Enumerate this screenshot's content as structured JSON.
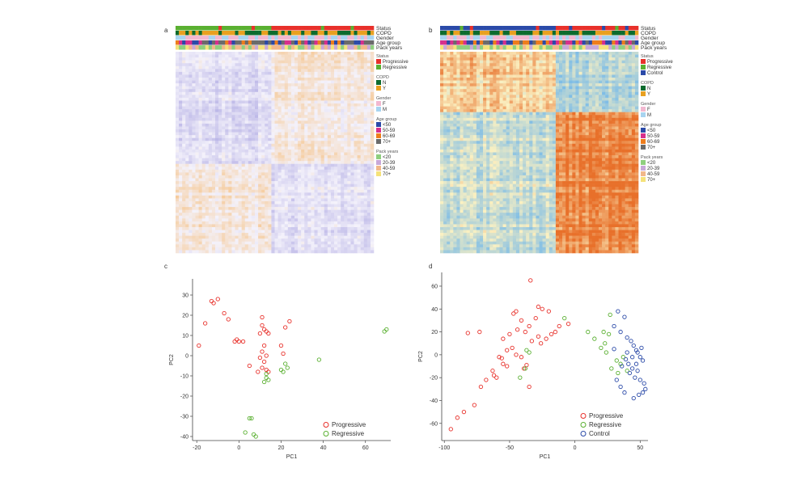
{
  "figure": {
    "panel_letters": [
      "a",
      "b",
      "c",
      "d"
    ],
    "colors": {
      "progressive": "#e8312b",
      "regressive": "#5ab031",
      "control": "#2b4aa8",
      "copd_n": "#0d6b2e",
      "copd_y": "#e8a020",
      "gender_f": "#f2b8d0",
      "gender_m": "#a8d4f0",
      "age_lt50": "#2b4aa8",
      "age_50_59": "#d72f8c",
      "age_60_69": "#ee7d1c",
      "age_70plus": "#6b6b6b",
      "pack_lt20": "#8fcf7e",
      "pack_20_39": "#c8a8d8",
      "pack_40_59": "#f2b88a",
      "pack_70plus": "#f5e27a"
    }
  },
  "chart_data": [
    {
      "id": "a",
      "type": "heatmap",
      "palette": [
        "#b9b4e6",
        "#f4f2fb",
        "#f6c58c"
      ],
      "track_labels": [
        "Status",
        "COPD",
        "Gender",
        "Age group",
        "Pack years"
      ],
      "legend": [
        {
          "title": "Status",
          "items": [
            "Progressive",
            "Regressive"
          ]
        },
        {
          "title": "COPD",
          "items": [
            "N",
            "Y"
          ]
        },
        {
          "title": "Gender",
          "items": [
            "F",
            "M"
          ]
        },
        {
          "title": "Age group",
          "items": [
            "<50",
            "50-59",
            "60-69",
            "70+"
          ]
        },
        {
          "title": "Pack years",
          "items": [
            "<20",
            "20-39",
            "40-59",
            "70+"
          ]
        }
      ]
    },
    {
      "id": "b",
      "type": "heatmap",
      "palette": [
        "#7fbde6",
        "#fbf1c2",
        "#e8702a"
      ],
      "track_labels": [
        "Status",
        "COPD",
        "Gender",
        "Age group",
        "Pack years"
      ],
      "legend": [
        {
          "title": "Status",
          "items": [
            "Progressive",
            "Regressive",
            "Control"
          ]
        },
        {
          "title": "COPD",
          "items": [
            "N",
            "Y"
          ]
        },
        {
          "title": "Gender",
          "items": [
            "F",
            "M"
          ]
        },
        {
          "title": "Age group",
          "items": [
            "<50",
            "50-59",
            "60-69",
            "70+"
          ]
        },
        {
          "title": "Pack years",
          "items": [
            "<20",
            "20-39",
            "40-59",
            "70+"
          ]
        }
      ]
    },
    {
      "id": "c",
      "type": "scatter",
      "xlabel": "PC1",
      "ylabel": "PC2",
      "xlim": [
        -22,
        72
      ],
      "ylim": [
        -42,
        38
      ],
      "xticks": [
        -20,
        0,
        20,
        40,
        60
      ],
      "yticks": [
        -40,
        -30,
        -20,
        -10,
        0,
        10,
        20,
        30
      ],
      "legend_position": "bottom-right",
      "series": [
        {
          "name": "Progressive",
          "color": "#e8312b",
          "points": [
            [
              -13,
              27
            ],
            [
              -10,
              28
            ],
            [
              -12,
              26
            ],
            [
              -16,
              16
            ],
            [
              -7,
              21
            ],
            [
              -5,
              18
            ],
            [
              -19,
              5
            ],
            [
              -1,
              8
            ],
            [
              0,
              7
            ],
            [
              2,
              7
            ],
            [
              -2,
              7
            ],
            [
              11,
              19
            ],
            [
              11,
              15
            ],
            [
              12,
              13
            ],
            [
              13,
              12
            ],
            [
              14,
              11
            ],
            [
              10,
              11
            ],
            [
              12,
              5
            ],
            [
              11,
              2
            ],
            [
              13,
              0
            ],
            [
              10,
              -1
            ],
            [
              12,
              -3
            ],
            [
              11,
              -6
            ],
            [
              9,
              -8
            ],
            [
              5,
              -5
            ],
            [
              13,
              -7
            ],
            [
              22,
              14
            ],
            [
              24,
              17
            ],
            [
              20,
              5
            ],
            [
              21,
              1
            ],
            [
              14,
              -8
            ]
          ]
        },
        {
          "name": "Regressive",
          "color": "#5ab031",
          "points": [
            [
              13,
              -9
            ],
            [
              13,
              -11
            ],
            [
              12,
              -13
            ],
            [
              14,
              -12
            ],
            [
              22,
              -4
            ],
            [
              23,
              -6
            ],
            [
              21,
              -8
            ],
            [
              20,
              -7
            ],
            [
              38,
              -2
            ],
            [
              70,
              13
            ],
            [
              69,
              12
            ],
            [
              5,
              -31
            ],
            [
              6,
              -31
            ],
            [
              3,
              -38
            ],
            [
              7,
              -39
            ],
            [
              8,
              -40
            ]
          ]
        }
      ]
    },
    {
      "id": "d",
      "type": "scatter",
      "xlabel": "PC1",
      "ylabel": "PC2",
      "xlim": [
        -102,
        56
      ],
      "ylim": [
        -75,
        72
      ],
      "xticks": [
        -100,
        -50,
        0,
        50
      ],
      "yticks": [
        -60,
        -40,
        -20,
        0,
        20,
        40,
        60
      ],
      "legend_position": "bottom-right",
      "series": [
        {
          "name": "Progressive",
          "color": "#e8312b",
          "points": [
            [
              -34,
              65
            ],
            [
              -45,
              38
            ],
            [
              -47,
              36
            ],
            [
              -28,
              42
            ],
            [
              -25,
              40
            ],
            [
              -20,
              38
            ],
            [
              -30,
              32
            ],
            [
              -41,
              30
            ],
            [
              -35,
              25
            ],
            [
              -38,
              20
            ],
            [
              -44,
              22
            ],
            [
              -50,
              18
            ],
            [
              -55,
              14
            ],
            [
              -73,
              20
            ],
            [
              -82,
              19
            ],
            [
              -48,
              6
            ],
            [
              -52,
              4
            ],
            [
              -41,
              -2
            ],
            [
              -45,
              0
            ],
            [
              -56,
              -3
            ],
            [
              -58,
              -2
            ],
            [
              -55,
              -8
            ],
            [
              -52,
              -10
            ],
            [
              -63,
              -14
            ],
            [
              -62,
              -18
            ],
            [
              -68,
              -22
            ],
            [
              -72,
              -28
            ],
            [
              -60,
              -20
            ],
            [
              -35,
              -28
            ],
            [
              -37,
              -9
            ],
            [
              -39,
              -12
            ],
            [
              -77,
              -44
            ],
            [
              -85,
              -50
            ],
            [
              -90,
              -55
            ],
            [
              -95,
              -65
            ],
            [
              -12,
              25
            ],
            [
              -5,
              27
            ],
            [
              -18,
              18
            ],
            [
              -22,
              14
            ],
            [
              -33,
              12
            ],
            [
              -28,
              16
            ],
            [
              -15,
              20
            ],
            [
              -26,
              10
            ]
          ]
        },
        {
          "name": "Regressive",
          "color": "#5ab031",
          "points": [
            [
              -8,
              32
            ],
            [
              -35,
              2
            ],
            [
              -38,
              -12
            ],
            [
              -42,
              -20
            ],
            [
              -37,
              4
            ],
            [
              10,
              20
            ],
            [
              15,
              14
            ],
            [
              22,
              20
            ],
            [
              27,
              35
            ],
            [
              26,
              18
            ],
            [
              20,
              6
            ],
            [
              23,
              10
            ],
            [
              24,
              2
            ],
            [
              32,
              -5
            ],
            [
              35,
              -8
            ],
            [
              28,
              -12
            ],
            [
              33,
              -16
            ],
            [
              37,
              -2
            ],
            [
              40,
              -14
            ]
          ]
        },
        {
          "name": "Control",
          "color": "#2b4aa8",
          "points": [
            [
              33,
              38
            ],
            [
              38,
              33
            ],
            [
              30,
              25
            ],
            [
              35,
              20
            ],
            [
              40,
              15
            ],
            [
              43,
              12
            ],
            [
              45,
              8
            ],
            [
              48,
              2
            ],
            [
              50,
              -2
            ],
            [
              52,
              -5
            ],
            [
              47,
              -8
            ],
            [
              44,
              -12
            ],
            [
              41,
              -8
            ],
            [
              39,
              -4
            ],
            [
              42,
              -16
            ],
            [
              46,
              -20
            ],
            [
              50,
              -22
            ],
            [
              53,
              -25
            ],
            [
              54,
              -30
            ],
            [
              52,
              -33
            ],
            [
              49,
              -35
            ],
            [
              45,
              -38
            ],
            [
              38,
              -33
            ],
            [
              35,
              -28
            ],
            [
              32,
              -22
            ],
            [
              36,
              -10
            ],
            [
              40,
              2
            ],
            [
              44,
              -2
            ],
            [
              47,
              4
            ],
            [
              51,
              6
            ],
            [
              48,
              -14
            ],
            [
              30,
              5
            ]
          ]
        }
      ]
    }
  ]
}
